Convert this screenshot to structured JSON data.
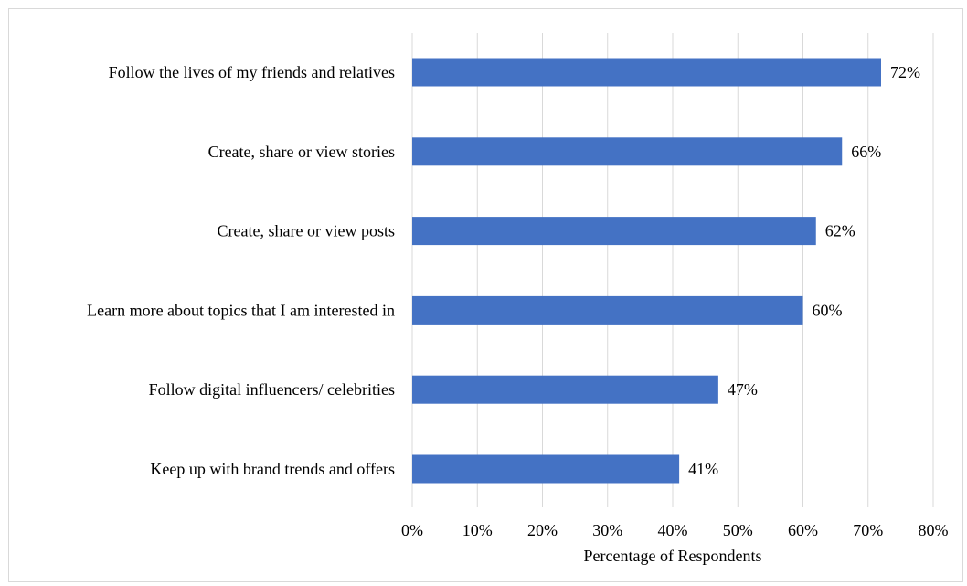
{
  "chart_data": {
    "type": "bar",
    "orientation": "horizontal",
    "title": "",
    "xlabel": "Percentage of Respondents",
    "ylabel": "",
    "xlim": [
      0,
      80
    ],
    "x_ticks": [
      "0%",
      "10%",
      "20%",
      "30%",
      "40%",
      "50%",
      "60%",
      "70%",
      "80%"
    ],
    "grid": "vertical",
    "legend": "none",
    "bar_color": "#4472c4",
    "categories": [
      "Follow the lives of my friends and relatives",
      "Create, share or view stories",
      "Create, share or view posts",
      "Learn more about topics that I am interested in",
      "Follow digital influencers/ celebrities",
      "Keep up with brand trends and offers"
    ],
    "values": [
      72,
      66,
      62,
      60,
      47,
      41
    ],
    "data_labels": [
      "72%",
      "66%",
      "62%",
      "60%",
      "47%",
      "41%"
    ]
  }
}
